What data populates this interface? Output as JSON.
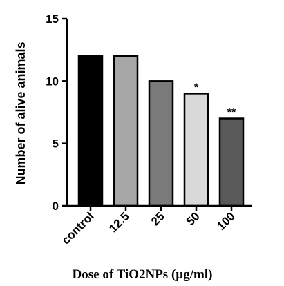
{
  "chart_data": {
    "type": "bar",
    "categories": [
      "control",
      "12.5",
      "25",
      "50",
      "100"
    ],
    "values": [
      12,
      12,
      10,
      9,
      7
    ],
    "annotations": [
      "",
      "",
      "",
      "*",
      "**"
    ],
    "colors": [
      "#000000",
      "#a6a6a6",
      "#7a7a7a",
      "#d9d9d9",
      "#595959"
    ],
    "edge_color": "#000000",
    "xlabel": "Dose of TiO2NPs (µg/ml)",
    "ylabel": "Number of alive animals",
    "ylim": [
      0,
      15
    ],
    "yticks": [
      "0",
      "5",
      "10",
      "15"
    ],
    "ytick_values": [
      0,
      5,
      10,
      15
    ],
    "grid": false,
    "legend": "none"
  }
}
